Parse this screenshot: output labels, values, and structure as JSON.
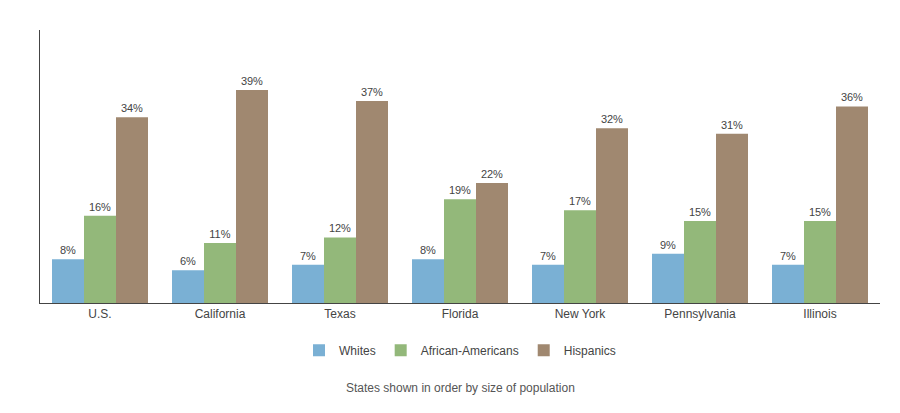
{
  "chart_data": {
    "type": "bar",
    "categories": [
      "U.S.",
      "California",
      "Texas",
      "Florida",
      "New York",
      "Pennsylvania",
      "Illinois"
    ],
    "series": [
      {
        "name": "Whites",
        "color": "#7ab0d4",
        "values": [
          8,
          6,
          7,
          8,
          7,
          9,
          7
        ],
        "value_labels": [
          "8%",
          "6%",
          "7%",
          "8%",
          "7%",
          "9%",
          "7%"
        ]
      },
      {
        "name": "African-Americans",
        "color": "#93b87a",
        "values": [
          16,
          11,
          12,
          19,
          17,
          15,
          15
        ],
        "value_labels": [
          "16%",
          "11%",
          "12%",
          "19%",
          "17%",
          "15%",
          "15%"
        ]
      },
      {
        "name": "Hispanics",
        "color": "#a08870",
        "values": [
          34,
          39,
          37,
          22,
          32,
          31,
          36
        ],
        "value_labels": [
          "34%",
          "39%",
          "37%",
          "22%",
          "32%",
          "31%",
          "36%"
        ]
      }
    ],
    "ylim": [
      0,
      50
    ],
    "yticks": [],
    "grid": false,
    "legend": "bottom",
    "data_labels": true,
    "tick_labels": "x",
    "annotations": [
      "States shown in order by size of population"
    ]
  }
}
